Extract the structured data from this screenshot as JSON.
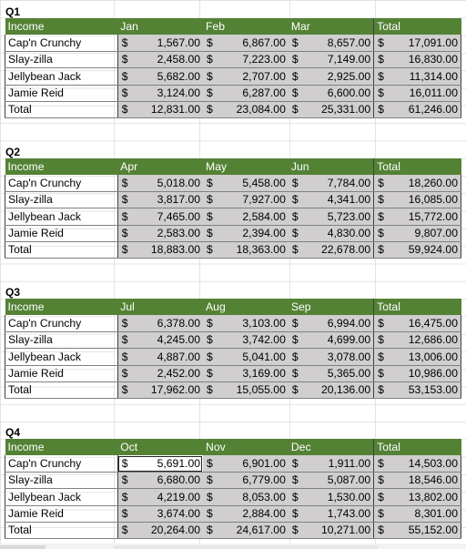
{
  "quarters": [
    {
      "label": "Q1",
      "header": [
        "Income",
        "Jan",
        "Feb",
        "Mar",
        "Total"
      ],
      "rows": [
        [
          "Cap'n Crunchy",
          "1,567.00",
          "6,867.00",
          "8,657.00",
          "17,091.00"
        ],
        [
          "Slay-zilla",
          "2,458.00",
          "7,223.00",
          "7,149.00",
          "16,830.00"
        ],
        [
          "Jellybean Jack",
          "5,682.00",
          "2,707.00",
          "2,925.00",
          "11,314.00"
        ],
        [
          "Jamie Reid",
          "3,124.00",
          "6,287.00",
          "6,600.00",
          "16,011.00"
        ],
        [
          "Total",
          "12,831.00",
          "23,084.00",
          "25,331.00",
          "61,246.00"
        ]
      ]
    },
    {
      "label": "Q2",
      "header": [
        "Income",
        "Apr",
        "May",
        "Jun",
        "Total"
      ],
      "rows": [
        [
          "Cap'n Crunchy",
          "5,018.00",
          "5,458.00",
          "7,784.00",
          "18,260.00"
        ],
        [
          "Slay-zilla",
          "3,817.00",
          "7,927.00",
          "4,341.00",
          "16,085.00"
        ],
        [
          "Jellybean Jack",
          "7,465.00",
          "2,584.00",
          "5,723.00",
          "15,772.00"
        ],
        [
          "Jamie Reid",
          "2,583.00",
          "2,394.00",
          "4,830.00",
          "9,807.00"
        ],
        [
          "Total",
          "18,883.00",
          "18,363.00",
          "22,678.00",
          "59,924.00"
        ]
      ]
    },
    {
      "label": "Q3",
      "header": [
        "Income",
        "Jul",
        "Aug",
        "Sep",
        "Total"
      ],
      "rows": [
        [
          "Cap'n Crunchy",
          "6,378.00",
          "3,103.00",
          "6,994.00",
          "16,475.00"
        ],
        [
          "Slay-zilla",
          "4,245.00",
          "3,742.00",
          "4,699.00",
          "12,686.00"
        ],
        [
          "Jellybean Jack",
          "4,887.00",
          "5,041.00",
          "3,078.00",
          "13,006.00"
        ],
        [
          "Jamie Reid",
          "2,452.00",
          "3,169.00",
          "5,365.00",
          "10,986.00"
        ],
        [
          "Total",
          "17,962.00",
          "15,055.00",
          "20,136.00",
          "53,153.00"
        ]
      ]
    },
    {
      "label": "Q4",
      "header": [
        "Income",
        "Oct",
        "Nov",
        "Dec",
        "Total"
      ],
      "rows": [
        [
          "Cap'n Crunchy",
          "5,691.00",
          "6,901.00",
          "1,911.00",
          "14,503.00"
        ],
        [
          "Slay-zilla",
          "6,680.00",
          "6,779.00",
          "5,087.00",
          "18,546.00"
        ],
        [
          "Jellybean Jack",
          "4,219.00",
          "8,053.00",
          "1,530.00",
          "13,802.00"
        ],
        [
          "Jamie Reid",
          "3,674.00",
          "2,884.00",
          "1,743.00",
          "8,301.00"
        ],
        [
          "Total",
          "20,264.00",
          "24,617.00",
          "10,271.00",
          "55,152.00"
        ]
      ]
    }
  ],
  "currency_symbol": "$",
  "colors": {
    "header_bg": "#548235",
    "header_text": "#ffffff",
    "value_bg": "#d0cece",
    "gridline": "#e3e3e3"
  }
}
